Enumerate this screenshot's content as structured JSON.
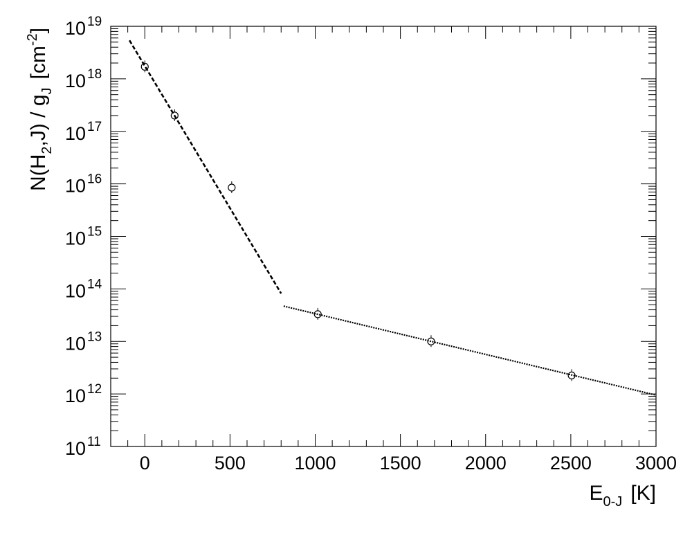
{
  "chart_data": {
    "type": "scatter",
    "title": "",
    "xlabel": {
      "main": "E",
      "sub": "0-J",
      "unit": "[K]"
    },
    "ylabel": {
      "p1": "N(H",
      "sub1": "2",
      "p2": ",J) / g",
      "sub2": "J",
      "unit": "[cm",
      "sup": "-2",
      "close": "]"
    },
    "xlim": [
      -200,
      3000
    ],
    "ylim": [
      100000000000.0,
      1e+19
    ],
    "yscale": "log",
    "grid": false,
    "x_ticks": [
      0,
      500,
      1000,
      1500,
      2000,
      2500,
      3000
    ],
    "x_tick_labels": [
      "0",
      "500",
      "1000",
      "1500",
      "2000",
      "2500",
      "3000"
    ],
    "y_tick_exponents": [
      11,
      12,
      13,
      14,
      15,
      16,
      17,
      18,
      19
    ],
    "y_tick_base": "10",
    "points": [
      {
        "x": 0,
        "y": 1.7e+18
      },
      {
        "x": 175,
        "y": 2e+17
      },
      {
        "x": 510,
        "y": 8500000000000000.0
      },
      {
        "x": 1015,
        "y": 33000000000000.0
      },
      {
        "x": 1680,
        "y": 10000000000000.0
      },
      {
        "x": 2505,
        "y": 2250000000000.0
      }
    ],
    "fit_lines": [
      {
        "style": "dashed",
        "x": [
          -90,
          800
        ],
        "y": [
          5.4e+18,
          82000000000000.0
        ]
      },
      {
        "style": "dotted",
        "x": [
          815,
          3000
        ],
        "y": [
          47000000000000.0,
          950000000000.0
        ]
      }
    ]
  }
}
